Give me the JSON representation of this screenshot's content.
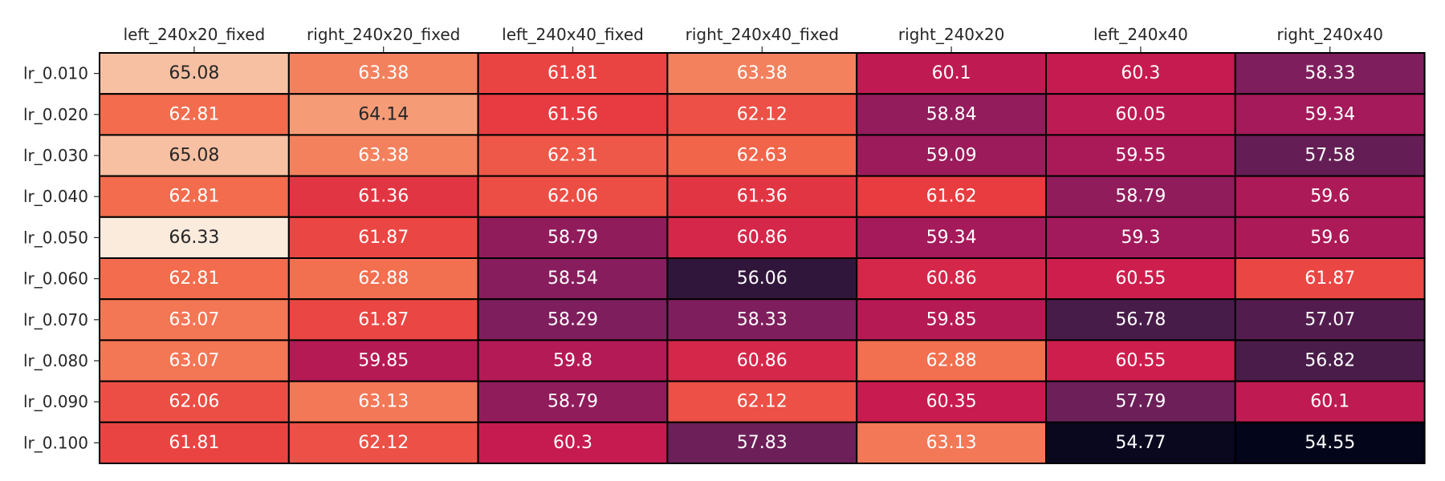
{
  "chart_data": {
    "type": "heatmap",
    "title": "",
    "xlabel": "",
    "ylabel": "",
    "columns": [
      "left_240x20_fixed",
      "right_240x20_fixed",
      "left_240x40_fixed",
      "right_240x40_fixed",
      "right_240x20",
      "left_240x40",
      "right_240x40"
    ],
    "rows": [
      "lr_0.010",
      "lr_0.020",
      "lr_0.030",
      "lr_0.040",
      "lr_0.050",
      "lr_0.060",
      "lr_0.070",
      "lr_0.080",
      "lr_0.090",
      "lr_0.100"
    ],
    "values": [
      [
        65.08,
        63.38,
        61.81,
        63.38,
        60.1,
        60.3,
        58.33
      ],
      [
        62.81,
        64.14,
        61.56,
        62.12,
        58.84,
        60.05,
        59.34
      ],
      [
        65.08,
        63.38,
        62.31,
        62.63,
        59.09,
        59.55,
        57.58
      ],
      [
        62.81,
        61.36,
        62.06,
        61.36,
        61.62,
        58.79,
        59.6
      ],
      [
        66.33,
        61.87,
        58.79,
        60.86,
        59.34,
        59.3,
        59.6
      ],
      [
        62.81,
        62.88,
        58.54,
        56.06,
        60.86,
        60.55,
        61.87
      ],
      [
        63.07,
        61.87,
        58.29,
        58.33,
        59.85,
        56.78,
        57.07
      ],
      [
        63.07,
        59.85,
        59.8,
        60.86,
        62.88,
        60.55,
        56.82
      ],
      [
        62.06,
        63.13,
        58.79,
        62.12,
        60.35,
        57.79,
        60.1
      ],
      [
        61.81,
        62.12,
        60.3,
        57.83,
        63.13,
        54.77,
        54.55
      ]
    ],
    "labels": [
      [
        "65.08",
        "63.38",
        "61.81",
        "63.38",
        "60.1",
        "60.3",
        "58.33"
      ],
      [
        "62.81",
        "64.14",
        "61.56",
        "62.12",
        "58.84",
        "60.05",
        "59.34"
      ],
      [
        "65.08",
        "63.38",
        "62.31",
        "62.63",
        "59.09",
        "59.55",
        "57.58"
      ],
      [
        "62.81",
        "61.36",
        "62.06",
        "61.36",
        "61.62",
        "58.79",
        "59.6"
      ],
      [
        "66.33",
        "61.87",
        "58.79",
        "60.86",
        "59.34",
        "59.3",
        "59.6"
      ],
      [
        "62.81",
        "62.88",
        "58.54",
        "56.06",
        "60.86",
        "60.55",
        "61.87"
      ],
      [
        "63.07",
        "61.87",
        "58.29",
        "58.33",
        "59.85",
        "56.78",
        "57.07"
      ],
      [
        "63.07",
        "59.85",
        "59.8",
        "60.86",
        "62.88",
        "60.55",
        "56.82"
      ],
      [
        "62.06",
        "63.13",
        "58.79",
        "62.12",
        "60.35",
        "57.79",
        "60.1"
      ],
      [
        "61.81",
        "62.12",
        "60.3",
        "57.83",
        "63.13",
        "54.77",
        "54.55"
      ]
    ],
    "vmin": 54.55,
    "vmax": 66.33,
    "colormap": "rocket",
    "colorbar": false,
    "x_axis_position": "top",
    "grid": false,
    "cell_border_color": "#000000",
    "text_color_dark": "#262626",
    "text_color_light": "#ffffff"
  }
}
